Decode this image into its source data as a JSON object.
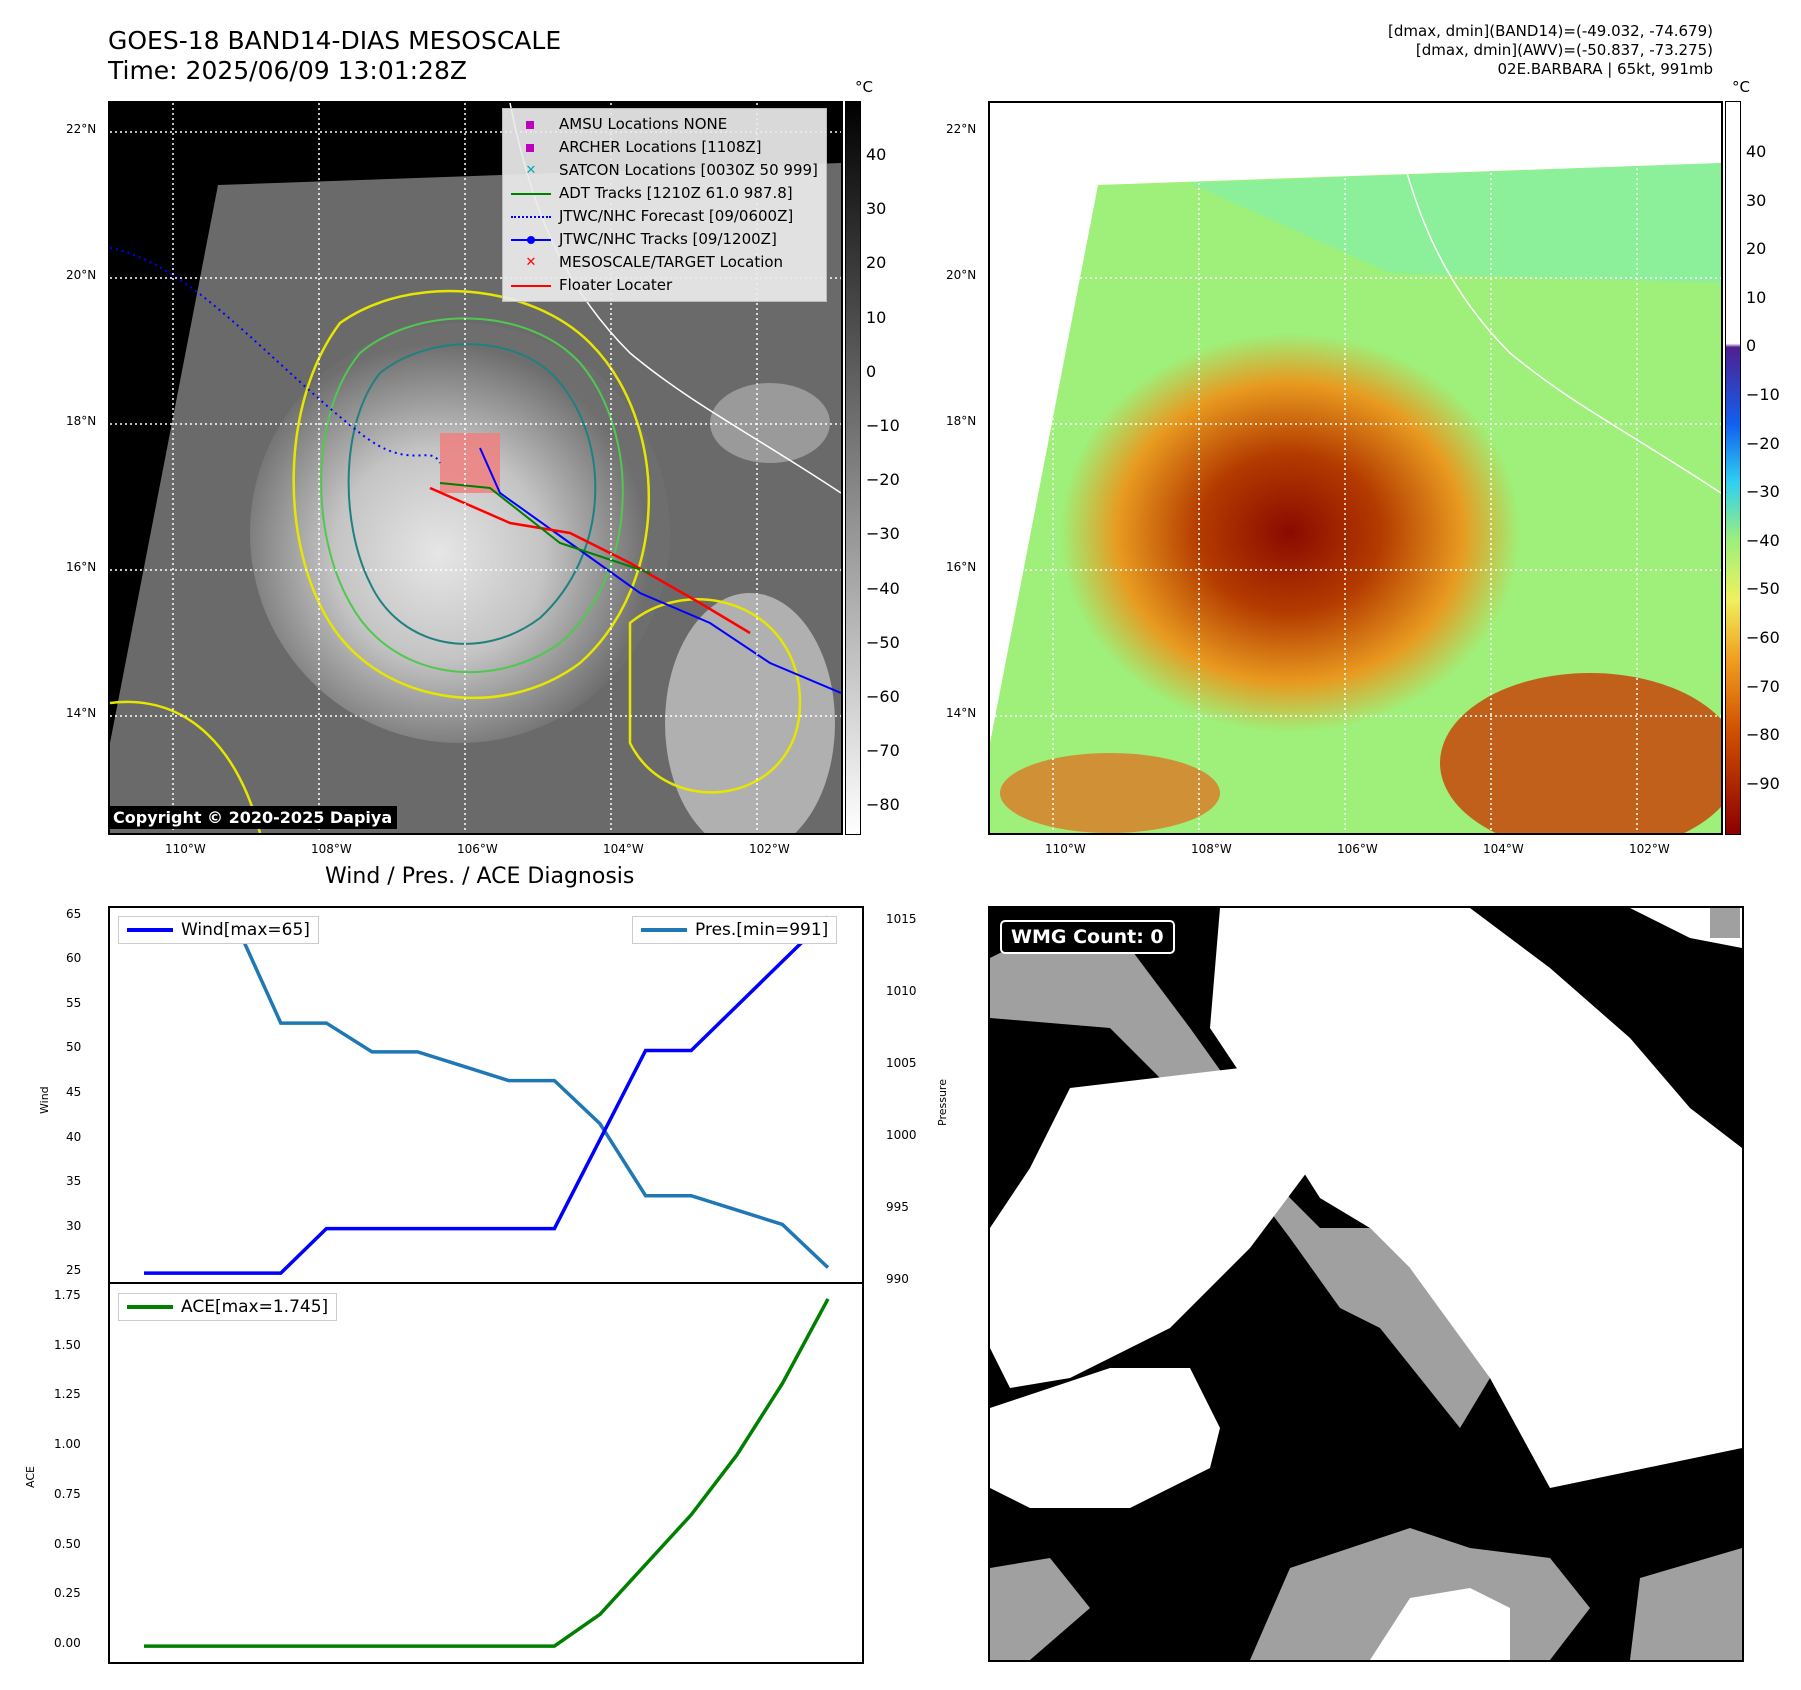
{
  "header": {
    "title_line1": "GOES-18 BAND14-DIAS MESOSCALE",
    "title_line2": "Time: 2025/06/09 13:01:28Z",
    "info_line1": "[dmax, dmin](BAND14)=(-49.032, -74.679)",
    "info_line2": "[dmax, dmin](AWV)=(-50.837, -73.275)",
    "info_line3": "02E.BARBARA | 65kt, 991mb"
  },
  "ir_panel": {
    "legend": [
      {
        "label": "AMSU Locations NONE",
        "symbol": "square",
        "color": "#c000c0"
      },
      {
        "label": "ARCHER Locations [1108Z]",
        "symbol": "square",
        "color": "#c000c0"
      },
      {
        "label": "SATCON Locations [0030Z 50 999]",
        "symbol": "x",
        "color": "#00b0b0"
      },
      {
        "label": "ADT Tracks [1210Z 61.0 987.8]",
        "symbol": "line",
        "color": "#008000"
      },
      {
        "label": "JTWC/NHC Forecast [09/0600Z]",
        "symbol": "dotted",
        "color": "#0000ff"
      },
      {
        "label": "JTWC/NHC Tracks [09/1200Z]",
        "symbol": "line-dot",
        "color": "#0000ff"
      },
      {
        "label": "MESOSCALE/TARGET Location",
        "symbol": "x",
        "color": "#ff0000"
      },
      {
        "label": "Floater Locater",
        "symbol": "line",
        "color": "#ff0000"
      }
    ],
    "copyright": "Copyright © 2020-2025 Dapiya",
    "colorbar_unit": "°C",
    "colorbar_ticks": [
      "40",
      "30",
      "20",
      "10",
      "0",
      "−10",
      "−20",
      "−30",
      "−40",
      "−50",
      "−60",
      "−70",
      "−80"
    ]
  },
  "awv_panel": {
    "colorbar_unit": "°C",
    "colorbar_ticks": [
      "40",
      "30",
      "20",
      "10",
      "0",
      "−10",
      "−20",
      "−30",
      "−40",
      "−50",
      "−60",
      "−70",
      "−80",
      "−90"
    ]
  },
  "map_axes": {
    "lon_labels": [
      "110°W",
      "108°W",
      "106°W",
      "104°W",
      "102°W"
    ],
    "lat_labels": [
      "22°N",
      "20°N",
      "18°N",
      "16°N",
      "14°N"
    ]
  },
  "diagnosis": {
    "title": "Wind / Pres. / ACE Diagnosis",
    "wind_legend": "Wind[max=65]",
    "pres_legend": "Pres.[min=991]",
    "ace_legend": "ACE[max=1.745]",
    "wind_ylabel": "Wind",
    "pres_ylabel": "Pressure",
    "ace_ylabel": "ACE",
    "wind_ticks": [
      "65",
      "60",
      "55",
      "50",
      "45",
      "40",
      "35",
      "30",
      "25"
    ],
    "pres_ticks": [
      "1015",
      "1010",
      "1005",
      "1000",
      "995",
      "990"
    ],
    "ace_ticks": [
      "1.75",
      "1.50",
      "1.25",
      "1.00",
      "0.75",
      "0.50",
      "0.25",
      "0.00"
    ]
  },
  "wmg": {
    "badge": "WMG Count: 0"
  },
  "chart_data": [
    {
      "type": "line",
      "title": "Wind / Pres. / ACE Diagnosis",
      "x": [
        0,
        1,
        2,
        3,
        4,
        5,
        6,
        7,
        8,
        9,
        10,
        11,
        12,
        13,
        14,
        15
      ],
      "series": [
        {
          "name": "Wind[max=65]",
          "axis": "left",
          "color": "#0000ff",
          "values": [
            25,
            25,
            25,
            25,
            30,
            30,
            30,
            30,
            30,
            30,
            40,
            50,
            50,
            55,
            60,
            65
          ]
        },
        {
          "name": "Pres.[min=991]",
          "axis": "right",
          "color": "#1f77b4",
          "values": [
            1015,
            1015,
            1015,
            1008,
            1008,
            1006,
            1006,
            1005,
            1004,
            1004,
            1001,
            996,
            996,
            995,
            994,
            991
          ]
        }
      ],
      "ylabel": "Wind",
      "ylim": [
        24,
        66
      ],
      "y2label": "Pressure",
      "y2lim": [
        990,
        1016
      ]
    },
    {
      "type": "line",
      "x": [
        0,
        1,
        2,
        3,
        4,
        5,
        6,
        7,
        8,
        9,
        10,
        11,
        12,
        13,
        14,
        15
      ],
      "series": [
        {
          "name": "ACE[max=1.745]",
          "color": "#008000",
          "values": [
            0,
            0,
            0,
            0,
            0,
            0,
            0,
            0,
            0,
            0,
            0.16,
            0.41,
            0.66,
            0.96,
            1.32,
            1.745
          ]
        }
      ],
      "ylabel": "ACE",
      "ylim": [
        -0.08,
        1.82
      ]
    }
  ]
}
